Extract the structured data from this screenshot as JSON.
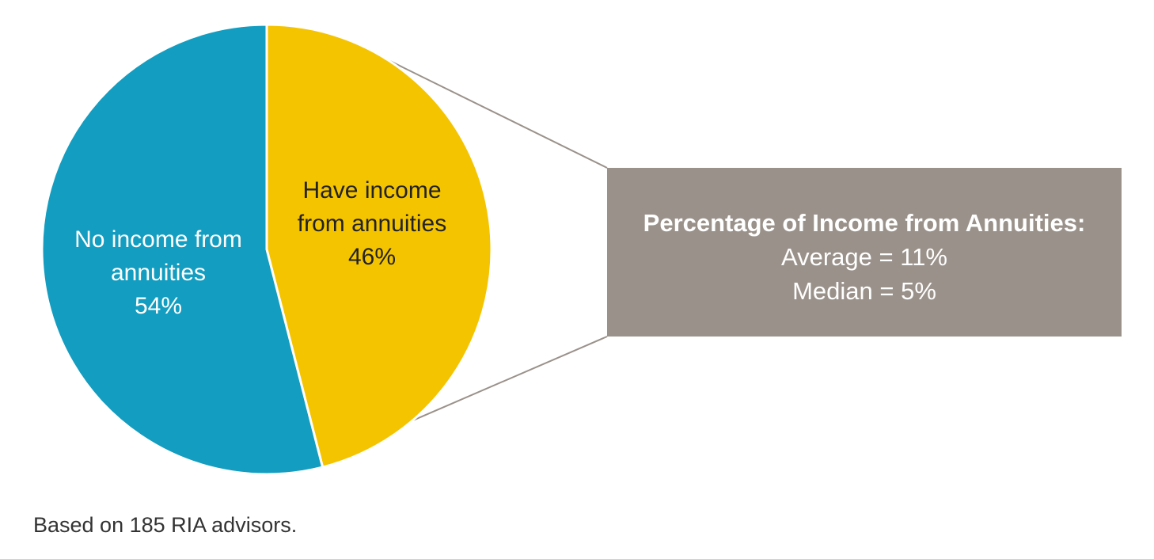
{
  "chart_data": {
    "type": "pie",
    "categories": [
      "Have income from annuities",
      "No income from annuities"
    ],
    "values": [
      46,
      54
    ],
    "value_labels": [
      "46%",
      "54%"
    ],
    "colors": [
      "#f5c400",
      "#139dc0"
    ]
  },
  "callout": {
    "title": "Percentage of Income from Annuities:",
    "lines": [
      "Average = 11%",
      "Median = 5%"
    ]
  },
  "footnote": "Based on 185 RIA advisors."
}
